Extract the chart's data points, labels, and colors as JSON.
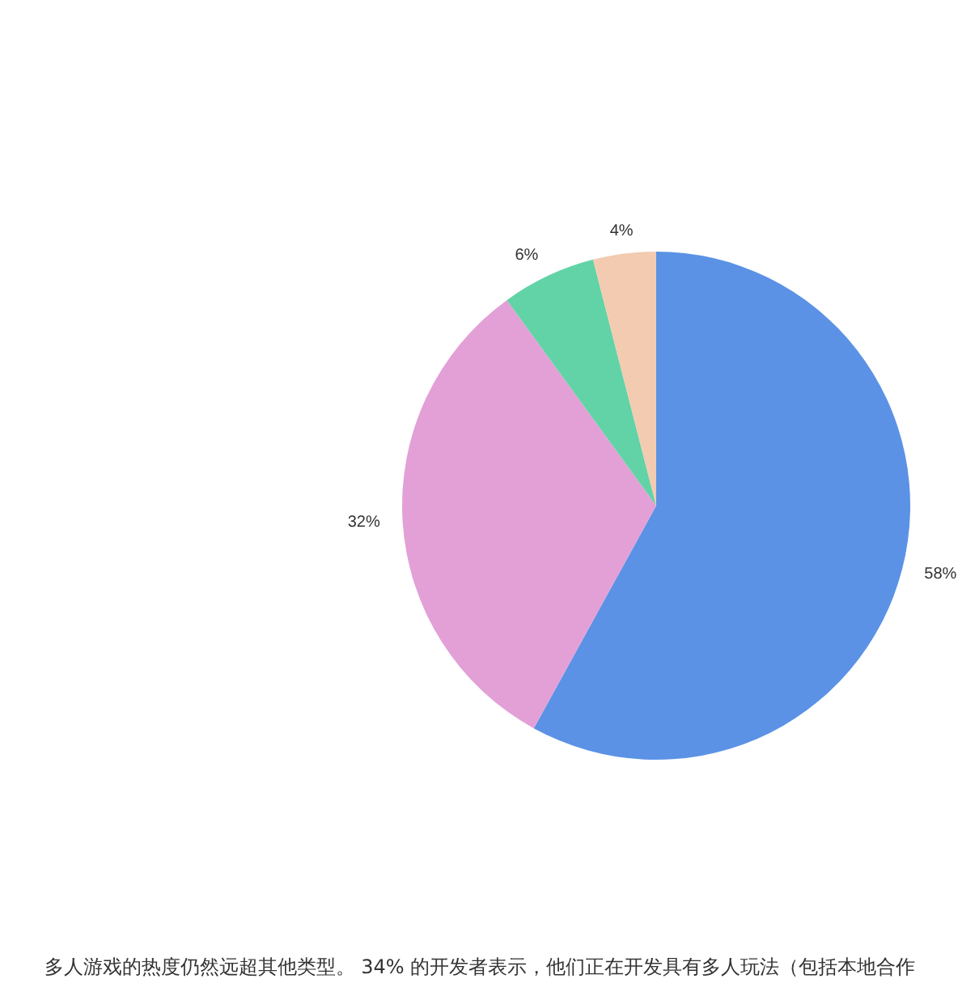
{
  "chart_data": {
    "type": "pie",
    "categories": [
      null,
      null,
      null,
      null
    ],
    "values": [
      58,
      32,
      6,
      4
    ],
    "colors": [
      "#5b92e5",
      "#e2a0d6",
      "#62d3a6",
      "#f2cbb0"
    ],
    "value_labels": [
      "58%",
      "32%",
      "6%",
      "4%"
    ],
    "annotations": [
      "多人游戏的热度仍然远超其他类型。 34% 的开发者表示，他们正在开发具有多人玩法（包括本地合作"
    ]
  }
}
